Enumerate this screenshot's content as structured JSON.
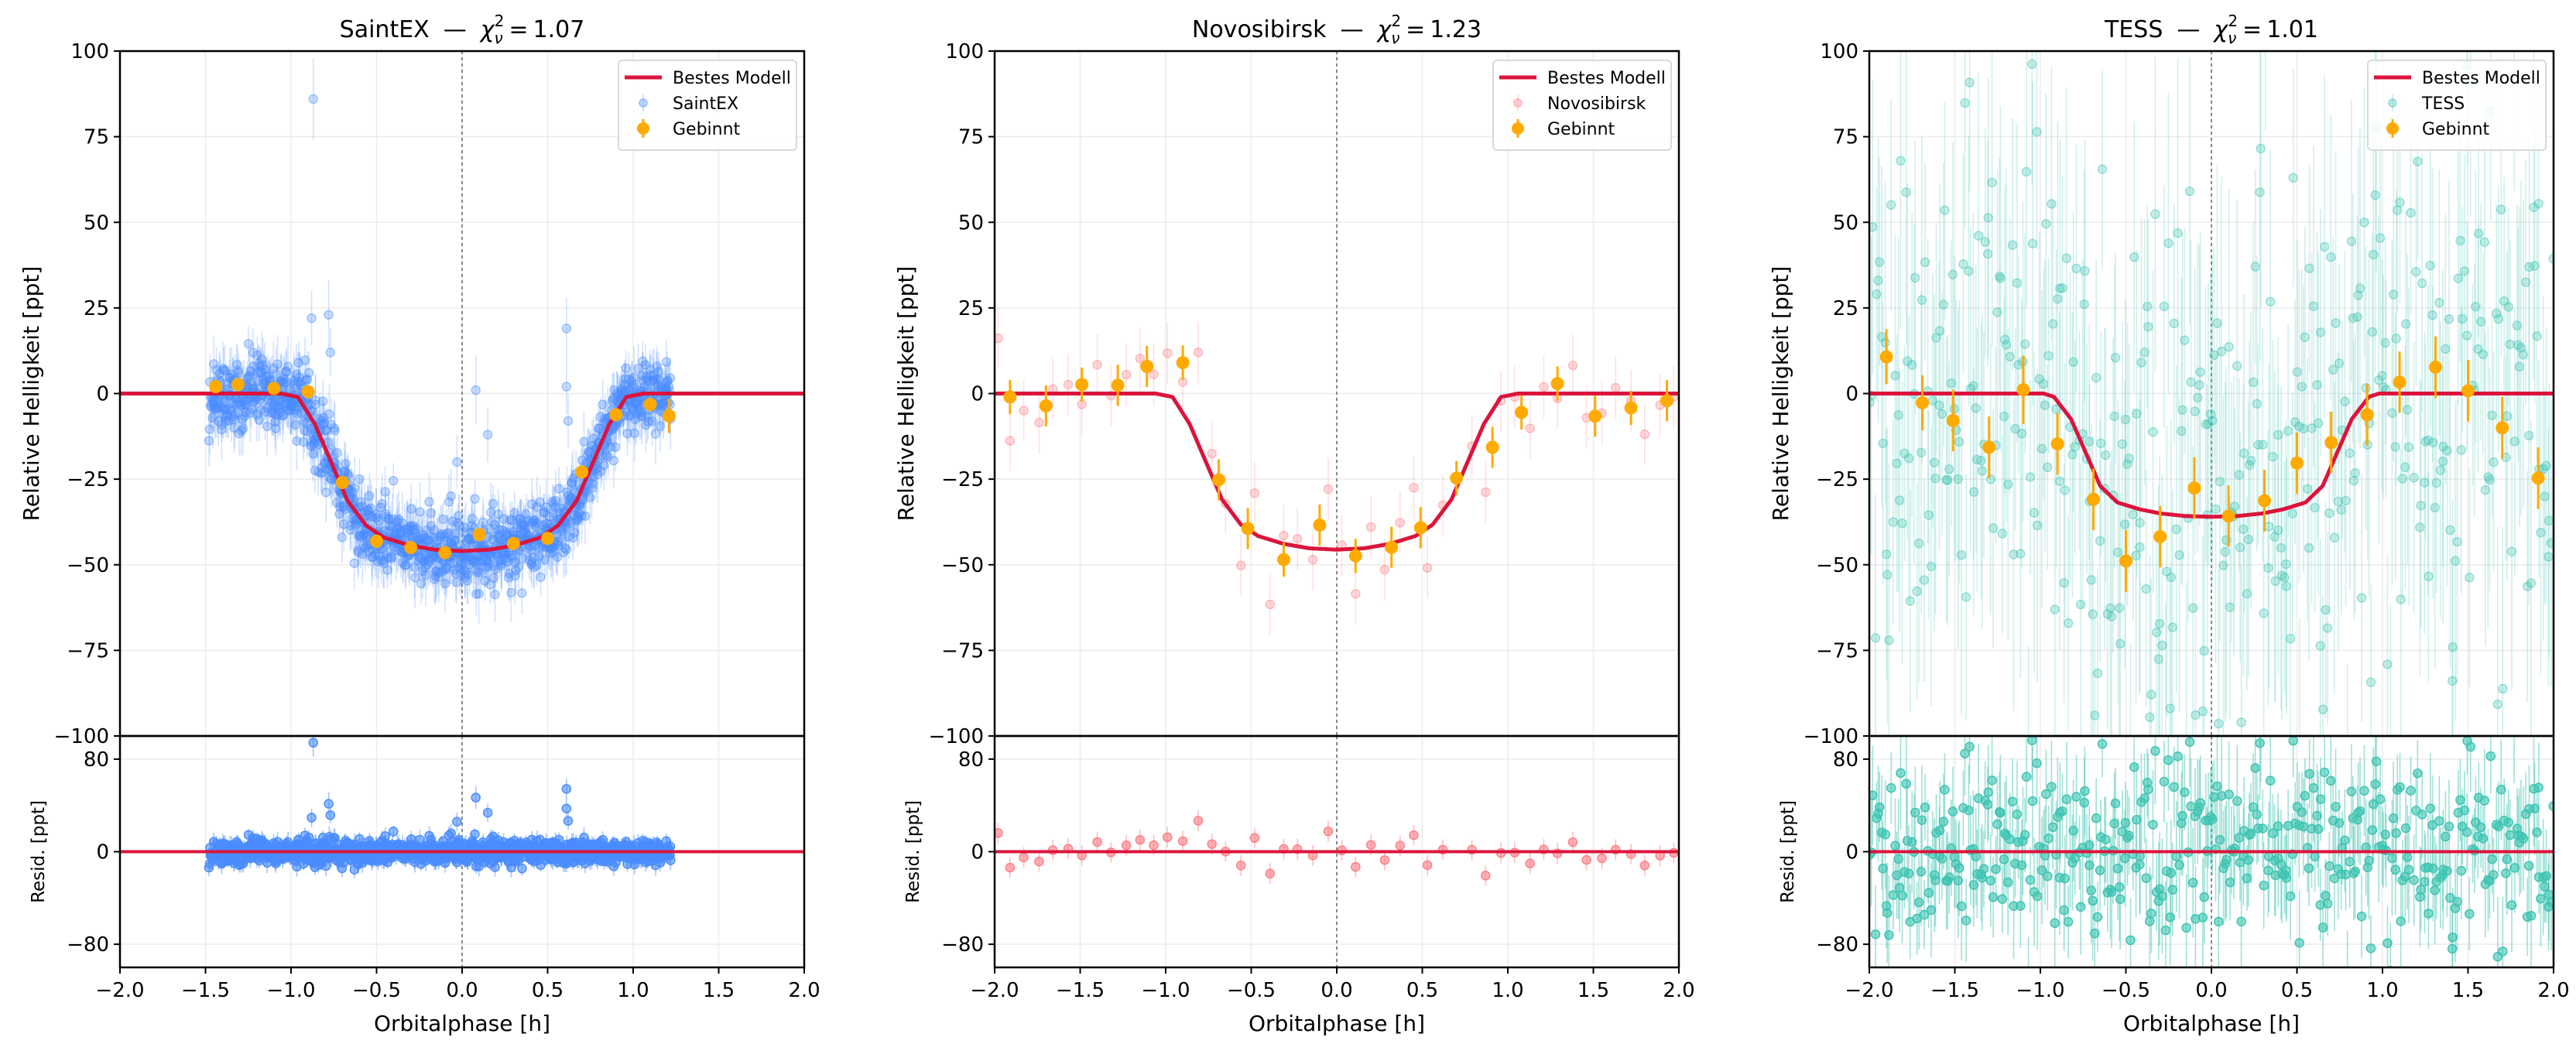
{
  "figure": {
    "colors": {
      "model": "#dc143c",
      "binned": "#ffaa00",
      "grid": "#ebebeb",
      "zero_line": "#888888"
    }
  },
  "chart_data": [
    {
      "type": "scatter",
      "title": {
        "name": "SaintEX",
        "dash": "—",
        "chi_symbol": "χ",
        "chi_sub": "ν",
        "chi_sup": "2",
        "equals": "=",
        "value": "1.07"
      },
      "xlabel": "Orbitalphase [h]",
      "ylabel": "Relative Helligkeit [ppt]",
      "resid_ylabel": "Resid. [ppt]",
      "xlim": [
        -2,
        2
      ],
      "ylim": [
        -100,
        100
      ],
      "resid_ylim": [
        -100,
        100
      ],
      "xticks": [
        -2,
        -1.5,
        -1,
        -0.5,
        0,
        0.5,
        1,
        1.5,
        2
      ],
      "xtick_labels": [
        "−2.0",
        "−1.5",
        "−1.0",
        "−0.5",
        "0.0",
        "0.5",
        "1.0",
        "1.5",
        "2.0"
      ],
      "yticks": [
        100,
        75,
        50,
        25,
        0,
        -25,
        -50,
        -75,
        -100
      ],
      "ytick_labels": [
        "100",
        "75",
        "50",
        "25",
        "0",
        "−25",
        "−50",
        "−75",
        "−100"
      ],
      "resid_yticks": [
        80,
        0,
        -80
      ],
      "resid_ytick_labels": [
        "80",
        "0",
        "−80"
      ],
      "grid": true,
      "legend": {
        "position": "top-right",
        "entries": [
          "Bestes Modell",
          "SaintEX",
          "Gebinnt"
        ]
      },
      "color": "#4a8cff",
      "model": {
        "phase": [
          -2,
          -1.06,
          -0.96,
          -0.86,
          -0.67,
          -0.56,
          -0.46,
          -0.31,
          -0.16,
          0,
          0.16,
          0.31,
          0.46,
          0.56,
          0.67,
          0.86,
          0.96,
          1.06,
          2
        ],
        "flux": [
          0,
          0,
          -1,
          -9,
          -31.3,
          -38.6,
          -42,
          -44.3,
          -45.6,
          -46,
          -45.6,
          -44.3,
          -42,
          -38.6,
          -31.3,
          -9,
          -1,
          0,
          0
        ]
      },
      "binned": {
        "phase": [
          -1.44,
          -1.31,
          -1.1,
          -0.9,
          -0.7,
          -0.5,
          -0.3,
          -0.1,
          0.1,
          0.3,
          0.5,
          0.7,
          0.9,
          1.1,
          1.21
        ],
        "flux": [
          2.0,
          2.6,
          1.5,
          0.5,
          -26.0,
          -43.1,
          -45.0,
          -46.5,
          -41.2,
          -43.8,
          -42.3,
          -22.9,
          -6.2,
          -3.2,
          -6.5
        ],
        "err": [
          1,
          1,
          1,
          1,
          1,
          1,
          1,
          1,
          1,
          1,
          1,
          1,
          1,
          1,
          5
        ]
      },
      "raw": {
        "phase_range": [
          -1.48,
          1.22
        ],
        "count": 1100,
        "scatter": 5,
        "err": 7,
        "outliers": [
          [
            -0.87,
            86,
            12
          ],
          [
            -0.88,
            22,
            8
          ],
          [
            -0.78,
            23,
            10
          ],
          [
            -0.77,
            12,
            7
          ],
          [
            -0.03,
            -20,
            8
          ],
          [
            0.08,
            1,
            10
          ],
          [
            0.15,
            -12,
            8
          ],
          [
            0.61,
            19,
            9
          ],
          [
            0.61,
            2,
            8
          ],
          [
            0.62,
            -8,
            8
          ]
        ]
      }
    },
    {
      "type": "scatter",
      "title": {
        "name": "Novosibirsk",
        "dash": "—",
        "chi_symbol": "χ",
        "chi_sub": "ν",
        "chi_sup": "2",
        "equals": "=",
        "value": "1.23"
      },
      "xlabel": "Orbitalphase [h]",
      "ylabel": "Relative Helligkeit [ppt]",
      "resid_ylabel": "Resid. [ppt]",
      "xlim": [
        -2,
        2
      ],
      "ylim": [
        -100,
        100
      ],
      "resid_ylim": [
        -100,
        100
      ],
      "xticks": [
        -2,
        -1.5,
        -1,
        -0.5,
        0,
        0.5,
        1,
        1.5,
        2
      ],
      "xtick_labels": [
        "−2.0",
        "−1.5",
        "−1.0",
        "−0.5",
        "0.0",
        "0.5",
        "1.0",
        "1.5",
        "2.0"
      ],
      "yticks": [
        100,
        75,
        50,
        25,
        0,
        -25,
        -50,
        -75,
        -100
      ],
      "ytick_labels": [
        "100",
        "75",
        "50",
        "25",
        "0",
        "−25",
        "−50",
        "−75",
        "−100"
      ],
      "resid_yticks": [
        80,
        0,
        -80
      ],
      "resid_ytick_labels": [
        "80",
        "0",
        "−80"
      ],
      "grid": true,
      "legend": {
        "position": "top-right",
        "entries": [
          "Bestes Modell",
          "Novosibirsk",
          "Gebinnt"
        ]
      },
      "color": "#ff7f86",
      "model": {
        "phase": [
          -2,
          -1.06,
          -0.96,
          -0.86,
          -0.67,
          -0.56,
          -0.46,
          -0.31,
          -0.16,
          0,
          0.16,
          0.31,
          0.46,
          0.56,
          0.67,
          0.86,
          0.96,
          1.06,
          2
        ],
        "flux": [
          0,
          0,
          -1,
          -8.9,
          -31,
          -38.3,
          -41.6,
          -43.9,
          -45.2,
          -45.6,
          -45.2,
          -43.9,
          -41.6,
          -38.3,
          -31,
          -8.9,
          -1,
          0,
          0
        ]
      },
      "binned": {
        "phase": [
          -1.91,
          -1.7,
          -1.49,
          -1.28,
          -1.11,
          -0.9,
          -0.69,
          -0.52,
          -0.31,
          -0.1,
          0.11,
          0.32,
          0.49,
          0.7,
          0.91,
          1.08,
          1.29,
          1.51,
          1.72,
          1.93
        ],
        "flux": [
          -1.0,
          -3.6,
          2.6,
          2.4,
          7.9,
          9.0,
          -25.2,
          -39.4,
          -48.5,
          -38.4,
          -47.4,
          -44.9,
          -39.2,
          -24.7,
          -15.7,
          -5.5,
          2.9,
          -6.6,
          -4.2,
          -2.1
        ],
        "err": [
          5,
          6,
          5,
          6,
          6,
          5,
          6,
          6,
          5,
          6,
          5,
          6,
          6,
          5,
          6,
          5,
          5,
          6,
          5,
          6
        ]
      },
      "raw": {
        "err": 9,
        "points": [
          [
            -1.98,
            16.1
          ],
          [
            -1.91,
            -13.8
          ],
          [
            -1.83,
            -5.0
          ],
          [
            -1.74,
            -8.5
          ],
          [
            -1.66,
            1.3
          ],
          [
            -1.57,
            2.6
          ],
          [
            -1.49,
            -3.2
          ],
          [
            -1.4,
            8.4
          ],
          [
            -1.32,
            -0.6
          ],
          [
            -1.23,
            5.5
          ],
          [
            -1.15,
            10.2
          ],
          [
            -1.07,
            5.6
          ],
          [
            -0.99,
            11.8
          ],
          [
            -0.9,
            3.4
          ],
          [
            -0.81,
            12.0
          ],
          [
            -0.73,
            -17.5
          ],
          [
            -0.65,
            -32.2
          ],
          [
            -0.56,
            -50.2
          ],
          [
            -0.48,
            -29.1
          ],
          [
            -0.39,
            -61.6
          ],
          [
            -0.31,
            -41.5
          ],
          [
            -0.23,
            -42.4
          ],
          [
            -0.14,
            -48.5
          ],
          [
            -0.05,
            -27.9
          ],
          [
            0.03,
            -44.3
          ],
          [
            0.11,
            -58.5
          ],
          [
            0.2,
            -39.0
          ],
          [
            0.28,
            -51.4
          ],
          [
            0.37,
            -37.7
          ],
          [
            0.45,
            -27.5
          ],
          [
            0.53,
            -50.9
          ],
          [
            0.62,
            -32.6
          ],
          [
            0.79,
            -15.4
          ],
          [
            0.87,
            -28.8
          ],
          [
            0.96,
            -2.1
          ],
          [
            1.04,
            -1.0
          ],
          [
            1.13,
            -10.2
          ],
          [
            1.21,
            1.9
          ],
          [
            1.29,
            -1.4
          ],
          [
            1.38,
            8.2
          ],
          [
            1.46,
            -7.1
          ],
          [
            1.55,
            -5.7
          ],
          [
            1.63,
            1.7
          ],
          [
            1.72,
            -2.1
          ],
          [
            1.8,
            -11.9
          ],
          [
            1.89,
            -3.4
          ],
          [
            1.97,
            -1.0
          ]
        ]
      }
    },
    {
      "type": "scatter",
      "title": {
        "name": "TESS",
        "dash": "—",
        "chi_symbol": "χ",
        "chi_sub": "ν",
        "chi_sup": "2",
        "equals": "=",
        "value": "1.01"
      },
      "xlabel": "Orbitalphase [h]",
      "ylabel": "Relative Helligkeit [ppt]",
      "resid_ylabel": "Resid. [ppt]",
      "xlim": [
        -2,
        2
      ],
      "ylim": [
        -100,
        100
      ],
      "resid_ylim": [
        -100,
        100
      ],
      "xticks": [
        -2,
        -1.5,
        -1,
        -0.5,
        0,
        0.5,
        1,
        1.5,
        2
      ],
      "xtick_labels": [
        "−2.0",
        "−1.5",
        "−1.0",
        "−0.5",
        "0.0",
        "0.5",
        "1.0",
        "1.5",
        "2.0"
      ],
      "yticks": [
        100,
        75,
        50,
        25,
        0,
        -25,
        -50,
        -75,
        -100
      ],
      "ytick_labels": [
        "100",
        "75",
        "50",
        "25",
        "0",
        "−25",
        "−50",
        "−75",
        "−100"
      ],
      "resid_yticks": [
        80,
        0,
        -80
      ],
      "resid_ytick_labels": [
        "80",
        "0",
        "−80"
      ],
      "grid": true,
      "legend": {
        "position": "top-right",
        "entries": [
          "Bestes Modell",
          "TESS",
          "Gebinnt"
        ]
      },
      "color": "#3fc4b2",
      "model": {
        "phase": [
          -2,
          -0.98,
          -0.92,
          -0.82,
          -0.65,
          -0.55,
          -0.42,
          -0.3,
          -0.15,
          0,
          0.15,
          0.3,
          0.42,
          0.55,
          0.65,
          0.82,
          0.92,
          0.98,
          2
        ],
        "flux": [
          0,
          0,
          -1,
          -7.5,
          -27,
          -31.8,
          -33.8,
          -35,
          -35.8,
          -36,
          -35.8,
          -35,
          -33.8,
          -31.8,
          -27,
          -7.5,
          -1,
          0,
          0
        ]
      },
      "binned": {
        "phase": [
          -1.9,
          -1.69,
          -1.51,
          -1.3,
          -1.1,
          -0.9,
          -0.69,
          -0.5,
          -0.3,
          -0.1,
          0.1,
          0.31,
          0.5,
          0.7,
          0.91,
          1.1,
          1.31,
          1.5,
          1.7,
          1.91
        ],
        "flux": [
          10.7,
          -2.7,
          -7.9,
          -15.7,
          1.1,
          -14.7,
          -30.9,
          -48.9,
          -41.8,
          -27.6,
          -35.8,
          -31.3,
          -20.3,
          -14.3,
          -6.2,
          3.3,
          7.7,
          0.8,
          -10.0,
          -24.7
        ],
        "err": [
          8,
          8,
          9,
          9,
          10,
          9,
          9,
          9,
          9,
          9,
          9,
          9,
          9,
          9,
          9,
          9,
          9,
          9,
          9,
          9
        ]
      },
      "raw": {
        "phase_range": [
          -2,
          2
        ],
        "count": 420,
        "scatter": 40,
        "err": 40,
        "outliers": []
      }
    }
  ]
}
